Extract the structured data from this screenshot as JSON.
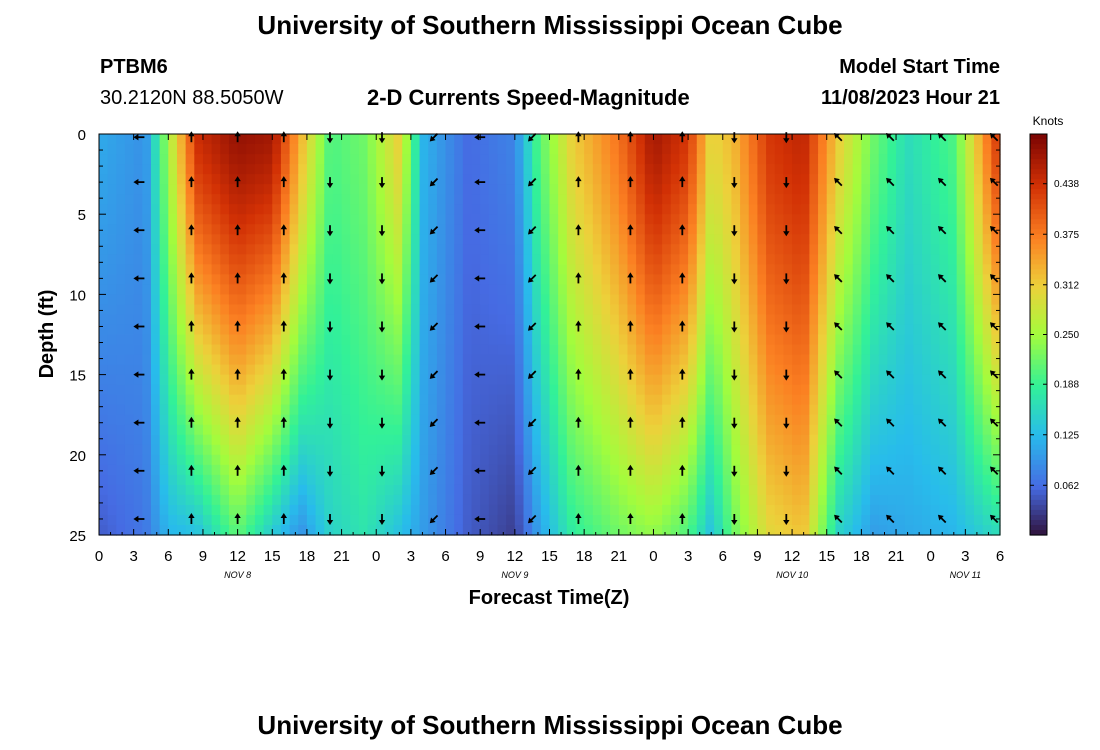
{
  "header": {
    "title": "University of Southern Mississippi Ocean Cube",
    "station_id": "PTBM6",
    "coords": "30.2120N  88.5050W",
    "plot_title": "2-D Currents Speed-Magnitude",
    "model_start_label": "Model Start Time",
    "model_start_value": "11/08/2023 Hour 21"
  },
  "footer": {
    "title": "University of Southern Mississippi Ocean Cube"
  },
  "chart_data": {
    "type": "heatmap",
    "title": "2-D Currents Speed-Magnitude",
    "xlabel": "Forecast Time(Z)",
    "ylabel": "Depth (ft)",
    "x_unit": "hours since 11/08 00Z",
    "xlim": [
      0,
      78
    ],
    "ylim": [
      0,
      25
    ],
    "y_inverted": true,
    "x_tick_values": [
      0,
      3,
      6,
      9,
      12,
      15,
      18,
      21,
      24,
      27,
      30,
      33,
      36,
      39,
      42,
      45,
      48,
      51,
      54,
      57,
      60,
      63,
      66,
      69,
      72,
      75,
      78
    ],
    "x_tick_labels": [
      "0",
      "3",
      "6",
      "9",
      "12",
      "15",
      "18",
      "21",
      "0",
      "3",
      "6",
      "9",
      "12",
      "15",
      "18",
      "21",
      "0",
      "3",
      "6",
      "9",
      "12",
      "15",
      "18",
      "21",
      "0",
      "3",
      "6"
    ],
    "date_labels": [
      {
        "text": "NOV 8",
        "x": 12
      },
      {
        "text": "NOV 9",
        "x": 36
      },
      {
        "text": "NOV 10",
        "x": 60
      },
      {
        "text": "NOV 11",
        "x": 75
      }
    ],
    "y_ticks": [
      0,
      5,
      10,
      15,
      20,
      25
    ],
    "colorbar": {
      "label": "Knots",
      "min": 0.0,
      "max": 0.5,
      "ticks": [
        "0.438",
        "0.375",
        "0.312",
        "0.250",
        "0.188",
        "0.125",
        "0.062"
      ],
      "tick_values": [
        0.438,
        0.375,
        0.312,
        0.25,
        0.188,
        0.125,
        0.062
      ]
    },
    "speed_keyframes": [
      {
        "h": 0,
        "top": 0.11,
        "bot": 0.05
      },
      {
        "h": 4,
        "top": 0.09,
        "bot": 0.07
      },
      {
        "h": 6,
        "top": 0.25,
        "bot": 0.12
      },
      {
        "h": 8.5,
        "top": 0.44,
        "bot": 0.13
      },
      {
        "h": 12,
        "top": 0.48,
        "bot": 0.21
      },
      {
        "h": 15,
        "top": 0.47,
        "bot": 0.14
      },
      {
        "h": 17.5,
        "top": 0.33,
        "bot": 0.09
      },
      {
        "h": 20,
        "top": 0.2,
        "bot": 0.15
      },
      {
        "h": 23,
        "top": 0.22,
        "bot": 0.17
      },
      {
        "h": 26,
        "top": 0.31,
        "bot": 0.13
      },
      {
        "h": 28,
        "top": 0.12,
        "bot": 0.1
      },
      {
        "h": 32,
        "top": 0.06,
        "bot": 0.05
      },
      {
        "h": 36,
        "top": 0.08,
        "bot": 0.03
      },
      {
        "h": 38,
        "top": 0.2,
        "bot": 0.1
      },
      {
        "h": 41,
        "top": 0.31,
        "bot": 0.18
      },
      {
        "h": 45,
        "top": 0.38,
        "bot": 0.22
      },
      {
        "h": 48,
        "top": 0.47,
        "bot": 0.24
      },
      {
        "h": 51,
        "top": 0.43,
        "bot": 0.2
      },
      {
        "h": 53,
        "top": 0.3,
        "bot": 0.13
      },
      {
        "h": 55,
        "top": 0.33,
        "bot": 0.22
      },
      {
        "h": 58,
        "top": 0.43,
        "bot": 0.3
      },
      {
        "h": 61,
        "top": 0.45,
        "bot": 0.32
      },
      {
        "h": 64,
        "top": 0.31,
        "bot": 0.15
      },
      {
        "h": 67,
        "top": 0.22,
        "bot": 0.1
      },
      {
        "h": 70,
        "top": 0.16,
        "bot": 0.11
      },
      {
        "h": 74,
        "top": 0.2,
        "bot": 0.12
      },
      {
        "h": 78,
        "top": 0.44,
        "bot": 0.16
      }
    ],
    "vector_columns": [
      {
        "h": 3.5,
        "dir": "left"
      },
      {
        "h": 8,
        "dir": "up"
      },
      {
        "h": 12,
        "dir": "up"
      },
      {
        "h": 16,
        "dir": "up"
      },
      {
        "h": 20,
        "dir": "down"
      },
      {
        "h": 24.5,
        "dir": "down"
      },
      {
        "h": 29,
        "dir": "down-left"
      },
      {
        "h": 33,
        "dir": "left"
      },
      {
        "h": 37.5,
        "dir": "down-left"
      },
      {
        "h": 41.5,
        "dir": "up"
      },
      {
        "h": 46,
        "dir": "up"
      },
      {
        "h": 50.5,
        "dir": "up"
      },
      {
        "h": 55,
        "dir": "down"
      },
      {
        "h": 59.5,
        "dir": "down"
      },
      {
        "h": 64,
        "dir": "up-left"
      },
      {
        "h": 68.5,
        "dir": "up-left"
      },
      {
        "h": 73,
        "dir": "up-left"
      },
      {
        "h": 77.5,
        "dir": "up-left"
      }
    ],
    "vector_depths": [
      0.2,
      3,
      6,
      9,
      12,
      15,
      18,
      21,
      24
    ]
  }
}
